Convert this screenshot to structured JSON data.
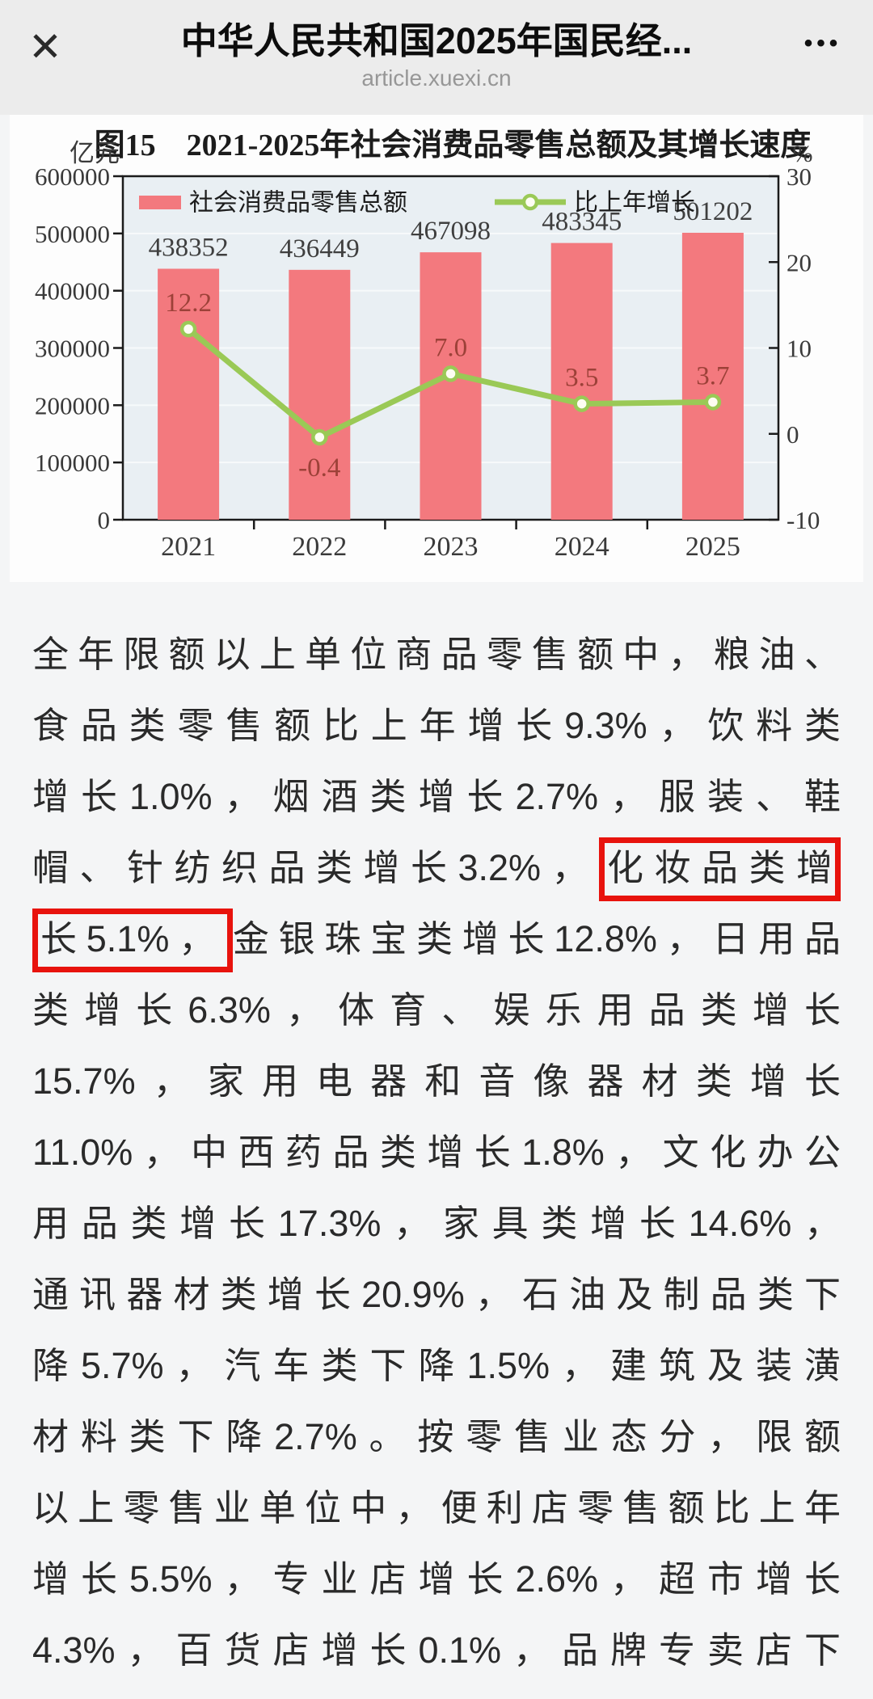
{
  "header": {
    "close_glyph": "✕",
    "title": "中华人民共和国2025年国民经...",
    "more_glyph": "•••",
    "url": "article.xuexi.cn"
  },
  "chart": {
    "chart_data": {
      "type": "bar+line",
      "title": "图15　2021-2025年社会消费品零售总额及其增长速度",
      "categories": [
        "2021",
        "2022",
        "2023",
        "2024",
        "2025"
      ],
      "series": [
        {
          "name": "社会消费品零售总额",
          "type": "bar",
          "axis": "left",
          "values": [
            438352,
            436449,
            467098,
            483345,
            501202
          ],
          "color": "#f3797e"
        },
        {
          "name": "比上年增长",
          "type": "line",
          "axis": "right",
          "values": [
            12.2,
            -0.4,
            7.0,
            3.5,
            3.7
          ],
          "color": "#9ac956",
          "marker_fill": "#fdfdf2",
          "label_color": "#9c4138"
        }
      ],
      "left_axis": {
        "unit": "亿元",
        "range": [
          0,
          600000
        ],
        "ticks": [
          600000,
          500000,
          400000,
          300000,
          200000,
          100000,
          0
        ]
      },
      "right_axis": {
        "unit": "%",
        "range": [
          -10,
          30
        ],
        "ticks": [
          30,
          20,
          10,
          0,
          -10
        ]
      },
      "legend_position": "top-left",
      "grid": true,
      "plot_bg": "#e9eff3",
      "axis_text_color": "#3a3a3a",
      "bar_label_color": "#3f3f3f"
    }
  },
  "article": {
    "lines": [
      [
        {
          "t": "全年限额以上单位商品零售额中，粮油、"
        }
      ],
      [
        {
          "t": "食品类零售额比上年增长9.3%，饮料类"
        }
      ],
      [
        {
          "t": "增长1.0%，烟酒类增长2.7%，服装、鞋"
        }
      ],
      [
        {
          "t": "帽、针纺织品类增长3.2%，"
        },
        {
          "t": "化妆品类增",
          "hl": true
        }
      ],
      [
        {
          "t": "长5.1%，",
          "hl": true
        },
        {
          "t": "金银珠宝类增长12.8%，日用品"
        }
      ],
      [
        {
          "t": "类增长6.3%，体育、娱乐用品类增长"
        }
      ],
      [
        {
          "t": "15.7%，家用电器和音像器材类增长"
        }
      ],
      [
        {
          "t": "11.0%，中西药品类增长1.8%，文化办公"
        }
      ],
      [
        {
          "t": "用品类增长17.3%，家具类增长14.6%，"
        }
      ],
      [
        {
          "t": "通讯器材类增长20.9%，石油及制品类下"
        }
      ],
      [
        {
          "t": "降5.7%，汽车类下降1.5%，建筑及装潢"
        }
      ],
      [
        {
          "t": "材料类下降2.7%。按零售业态分，限额"
        }
      ],
      [
        {
          "t": "以上零售业单位中，便利店零售额比上年"
        }
      ],
      [
        {
          "t": "增长5.5%，专业店增长2.6%，超市增长"
        }
      ],
      [
        {
          "t": "4.3%，百货店增长0.1%，品牌专卖店下"
        }
      ]
    ]
  }
}
